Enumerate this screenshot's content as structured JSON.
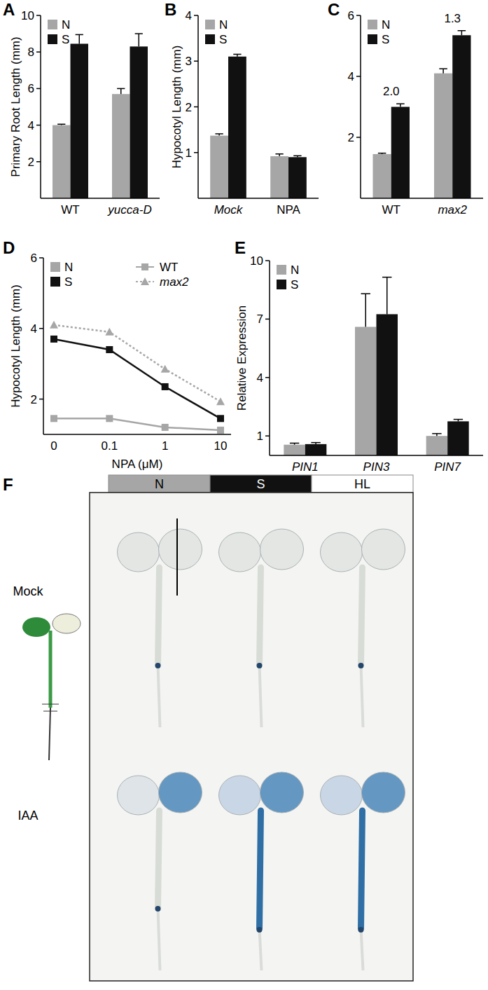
{
  "chart_data": [
    {
      "panel": "A",
      "type": "bar",
      "ylabel": "Primary Root Length (mm)",
      "categories": [
        "WT",
        "yucca-D"
      ],
      "series": [
        {
          "name": "N",
          "color": "#a6a6a6",
          "values": [
            4.0,
            5.7
          ],
          "errors": [
            0.05,
            0.3
          ]
        },
        {
          "name": "S",
          "color": "#111111",
          "values": [
            8.45,
            8.3
          ],
          "errors": [
            0.5,
            0.7
          ]
        }
      ],
      "ylim": [
        0,
        10
      ],
      "yticks": [
        2,
        4,
        6,
        8,
        10
      ],
      "legend": "top-left"
    },
    {
      "panel": "B",
      "type": "bar",
      "ylabel": "Hypocotyl Length (mm)",
      "categories": [
        "Mock",
        "NPA"
      ],
      "series": [
        {
          "name": "N",
          "color": "#a6a6a6",
          "values": [
            1.37,
            0.92
          ],
          "errors": [
            0.04,
            0.05
          ]
        },
        {
          "name": "S",
          "color": "#111111",
          "values": [
            3.1,
            0.9
          ],
          "errors": [
            0.05,
            0.03
          ]
        }
      ],
      "ylim": [
        0,
        4
      ],
      "yticks": [
        1,
        2,
        3,
        4
      ],
      "legend": "top-left"
    },
    {
      "panel": "C",
      "type": "bar",
      "categories": [
        "WT",
        "max2"
      ],
      "series": [
        {
          "name": "N",
          "color": "#a6a6a6",
          "values": [
            1.45,
            4.1
          ],
          "errors": [
            0.03,
            0.15
          ]
        },
        {
          "name": "S",
          "color": "#111111",
          "values": [
            3.0,
            5.35
          ],
          "errors": [
            0.1,
            0.15
          ]
        }
      ],
      "annotations": [
        {
          "category": "WT",
          "text": "2.0"
        },
        {
          "category": "max2",
          "text": "1.3"
        }
      ],
      "ylim": [
        0,
        6
      ],
      "yticks": [
        2,
        4,
        6
      ],
      "legend": "top-left"
    },
    {
      "panel": "D",
      "type": "line",
      "xlabel": "NPA (μM)",
      "ylabel": "Hypocotyl Length (mm)",
      "categories": [
        "0",
        "0.1",
        "1",
        "10"
      ],
      "series": [
        {
          "color": "#a6a6a6",
          "marker": "square",
          "line_style": "solid",
          "values": [
            1.45,
            1.45,
            1.2,
            1.12
          ]
        },
        {
          "color": "#111111",
          "marker": "square",
          "line_style": "solid",
          "values": [
            3.7,
            3.4,
            2.35,
            1.45
          ]
        },
        {
          "color": "#a6a6a6",
          "marker": "triangle",
          "line_style": "dotted",
          "values": [
            4.1,
            3.9,
            2.85,
            1.93
          ]
        }
      ],
      "legend_colors": [
        {
          "label": "N",
          "color": "#a6a6a6"
        },
        {
          "label": "S",
          "color": "#111111"
        }
      ],
      "legend_markers": [
        {
          "label": "WT",
          "color": "#a6a6a6",
          "marker": "square",
          "line_style": "solid"
        },
        {
          "label": "max2",
          "color": "#a6a6a6",
          "marker": "triangle",
          "line_style": "dotted"
        }
      ],
      "ylim": [
        1,
        6
      ],
      "yticks": [
        2,
        4,
        6
      ],
      "legend": "top-left"
    },
    {
      "panel": "E",
      "type": "bar",
      "ylabel": "Relative Expression",
      "categories": [
        "PIN1",
        "PIN3",
        "PIN7"
      ],
      "series": [
        {
          "name": "N",
          "color": "#a6a6a6",
          "values": [
            0.55,
            6.6,
            1.0
          ],
          "errors": [
            0.08,
            1.7,
            0.12
          ]
        },
        {
          "name": "S",
          "color": "#111111",
          "values": [
            0.58,
            7.25,
            1.75
          ],
          "errors": [
            0.08,
            1.9,
            0.1
          ]
        }
      ],
      "ylim": [
        0,
        10
      ],
      "yticks": [
        1,
        4,
        7,
        10
      ],
      "legend": "top-left"
    }
  ],
  "figure": {
    "panel": "F",
    "columns": [
      "N",
      "S",
      "HL"
    ],
    "colors": [
      "#a6a6a6",
      "#111111",
      "#ffffff"
    ],
    "rows": [
      "Mock",
      "IAA"
    ]
  }
}
